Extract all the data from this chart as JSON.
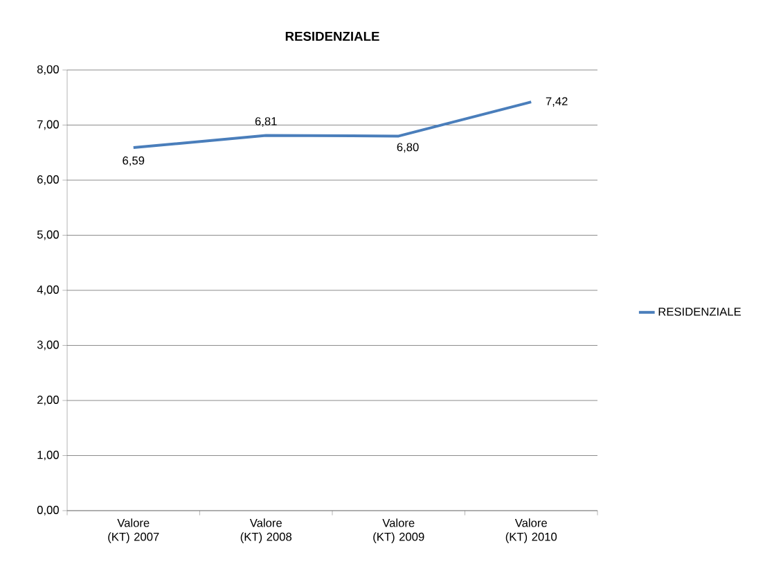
{
  "chart_data": {
    "type": "line",
    "title": "RESIDENZIALE",
    "categories": [
      "Valore (KT) 2007",
      "Valore (KT) 2008",
      "Valore (KT) 2009",
      "Valore (KT) 2010"
    ],
    "series": [
      {
        "name": "RESIDENZIALE",
        "color": "#4a7ebb",
        "values": [
          6.59,
          6.81,
          6.8,
          7.42
        ],
        "value_labels": [
          "6,59",
          "6,81",
          "6,80",
          "7,42"
        ]
      }
    ],
    "ylim": [
      0,
      8
    ],
    "yticks": [
      {
        "value": 0,
        "label": "0,00"
      },
      {
        "value": 1,
        "label": "1,00"
      },
      {
        "value": 2,
        "label": "2,00"
      },
      {
        "value": 3,
        "label": "3,00"
      },
      {
        "value": 4,
        "label": "4,00"
      },
      {
        "value": 5,
        "label": "5,00"
      },
      {
        "value": 6,
        "label": "6,00"
      },
      {
        "value": 7,
        "label": "7,00"
      },
      {
        "value": 8,
        "label": "8,00"
      }
    ],
    "grid": "y",
    "legend": "right",
    "marker": "none",
    "line_style": "solid"
  }
}
